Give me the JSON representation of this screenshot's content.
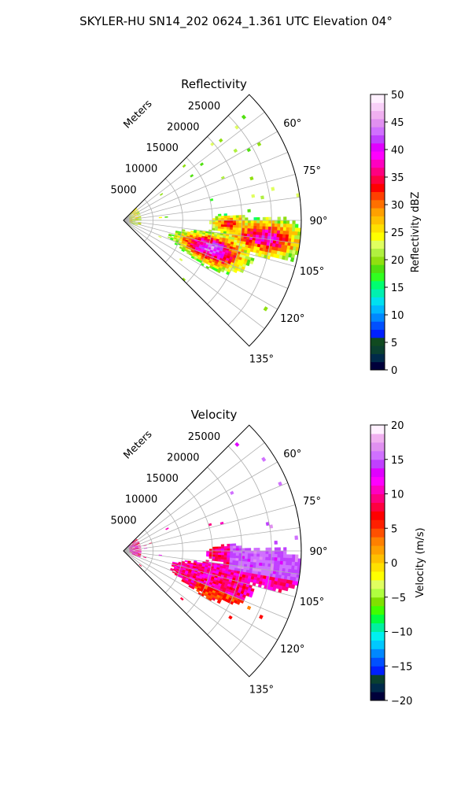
{
  "suptitle": "SKYLER-HU  SN14_202  0624_1.361 UTC Elevation 04°",
  "colors": {
    "reflectivity_scale": [
      "#00003a",
      "#002a4a",
      "#0a4030",
      "#104a20",
      "#0020ff",
      "#0050ff",
      "#0088ff",
      "#00b8ff",
      "#00e0f0",
      "#00f0b0",
      "#00ff70",
      "#30ff20",
      "#50e010",
      "#90e010",
      "#b0f040",
      "#e0ff60",
      "#ffff00",
      "#ffe000",
      "#ffc000",
      "#ffa000",
      "#ff7000",
      "#ff4000",
      "#ff0000",
      "#ff0040",
      "#ff0080",
      "#ff00c0",
      "#ff00ff",
      "#e000ff",
      "#c040ff",
      "#d070ff",
      "#e090f0",
      "#f0b0f0",
      "#f8d0f8",
      "#fff0ff"
    ],
    "velocity_scale": [
      "#00003a",
      "#002a4a",
      "#0a4030",
      "#0020ff",
      "#0050ff",
      "#0088ff",
      "#00c8ff",
      "#00f0f0",
      "#00f0a0",
      "#00ff40",
      "#40ff00",
      "#80e000",
      "#b0ff40",
      "#e0ff60",
      "#ffff00",
      "#ffe000",
      "#ffc000",
      "#ffa000",
      "#ff8000",
      "#ff5000",
      "#ff2000",
      "#ff0000",
      "#ff0040",
      "#ff0080",
      "#ff00c0",
      "#ff00ff",
      "#e000ff",
      "#c040ff",
      "#d070ff",
      "#e090f0",
      "#f0b0f0",
      "#fff0ff"
    ]
  },
  "chart_data": [
    {
      "type": "heatmap",
      "title": "Reflectivity",
      "projection": "polar sector",
      "radial_label": "Meters",
      "r_ticks": [
        5000,
        10000,
        15000,
        20000,
        25000
      ],
      "r_max": 30000,
      "theta_ticks": [
        "60°",
        "75°",
        "90°",
        "105°",
        "120°",
        "135°"
      ],
      "theta_range_deg": [
        45,
        135
      ],
      "grid": true,
      "colorbar": {
        "label": "Reflectivity dBZ",
        "ticks": [
          0,
          5,
          10,
          15,
          20,
          25,
          30,
          35,
          40,
          45,
          50
        ],
        "range": [
          0,
          50
        ]
      }
    },
    {
      "type": "heatmap",
      "title": "Velocity",
      "projection": "polar sector",
      "radial_label": "Meters",
      "r_ticks": [
        5000,
        10000,
        15000,
        20000,
        25000
      ],
      "r_max": 30000,
      "theta_ticks": [
        "60°",
        "75°",
        "90°",
        "105°",
        "120°",
        "135°"
      ],
      "theta_range_deg": [
        45,
        135
      ],
      "grid": true,
      "colorbar": {
        "label": "Velocity (m/s)",
        "ticks": [
          -20,
          -15,
          -10,
          -5,
          0,
          5,
          10,
          15,
          20
        ],
        "range": [
          -20,
          20
        ]
      }
    }
  ]
}
